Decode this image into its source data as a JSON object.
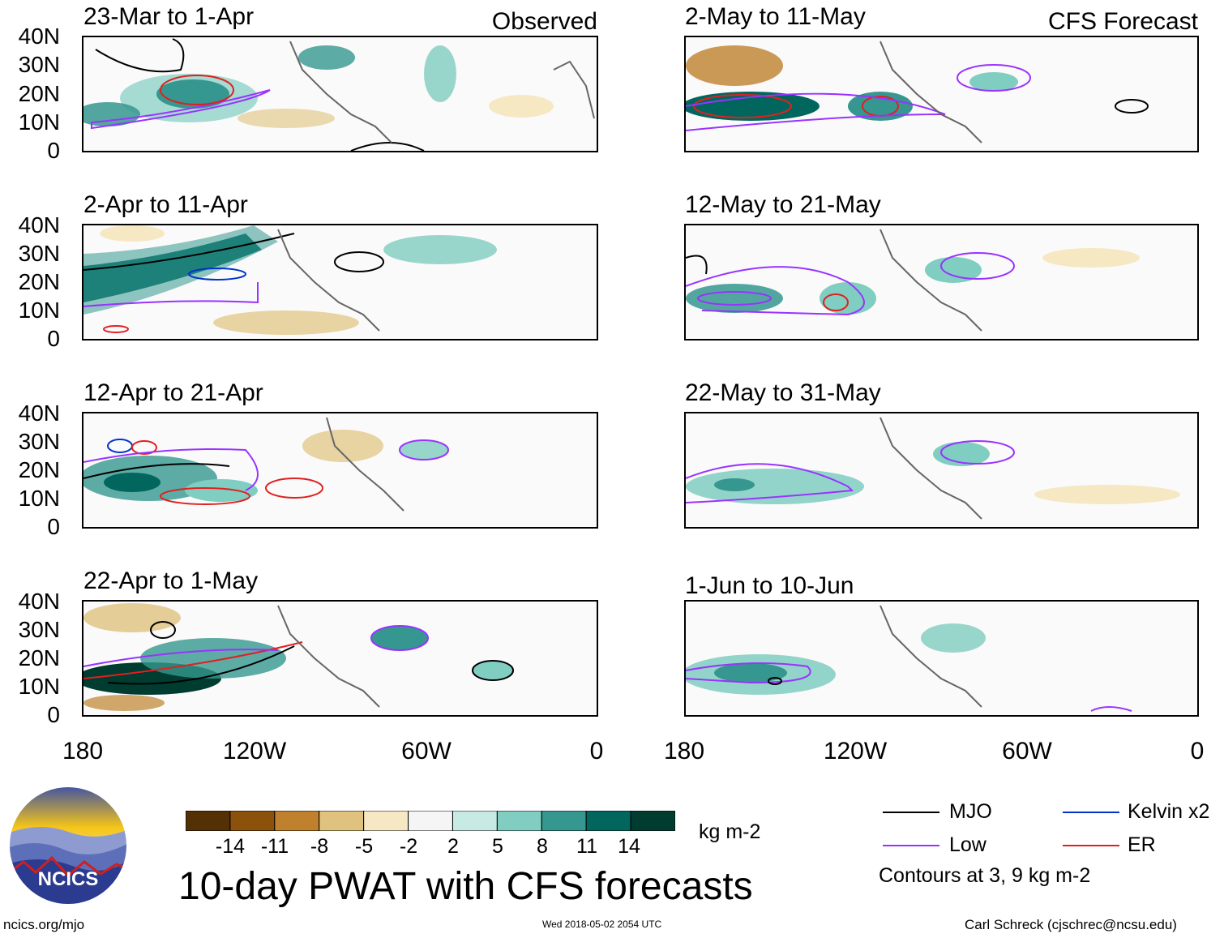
{
  "header": {
    "observed_label": "Observed",
    "forecast_label": "CFS Forecast"
  },
  "panels": {
    "left": [
      {
        "title": "23-Mar to 1-Apr"
      },
      {
        "title": "2-Apr to 11-Apr"
      },
      {
        "title": "12-Apr to 21-Apr"
      },
      {
        "title": "22-Apr to 1-May"
      }
    ],
    "right": [
      {
        "title": "2-May to 11-May"
      },
      {
        "title": "12-May to 21-May"
      },
      {
        "title": "22-May to 31-May"
      },
      {
        "title": "1-Jun to 10-Jun"
      }
    ]
  },
  "axes": {
    "lat_labels": [
      "40N",
      "30N",
      "20N",
      "10N",
      "0"
    ],
    "lon_labels": [
      "180",
      "120W",
      "60W",
      "0"
    ]
  },
  "colorbar": {
    "labels": [
      "-14",
      "-11",
      "-8",
      "-5",
      "-2",
      "2",
      "5",
      "8",
      "11",
      "14"
    ],
    "units": "kg m-2",
    "colors": [
      "#543005",
      "#8c510a",
      "#bf812d",
      "#dfc27d",
      "#f6e8c3",
      "#f5f5f5",
      "#c7eae5",
      "#80cdc1",
      "#35978f",
      "#01665e",
      "#003c30"
    ]
  },
  "legend": {
    "items": [
      {
        "label": "MJO",
        "color": "#000000"
      },
      {
        "label": "Kelvin x2",
        "color": "#0033cc"
      },
      {
        "label": "Low",
        "color": "#9933ff"
      },
      {
        "label": "ER",
        "color": "#e02020"
      }
    ],
    "note": "Contours at 3, 9 kg m-2"
  },
  "title": "10-day PWAT with CFS forecasts",
  "logo": {
    "text": "NCICS"
  },
  "footer": {
    "url": "ncics.org/mjo",
    "timestamp": "Wed 2018-05-02 2054 UTC",
    "credit": "Carl Schreck (cjschrec@ncsu.edu)"
  }
}
